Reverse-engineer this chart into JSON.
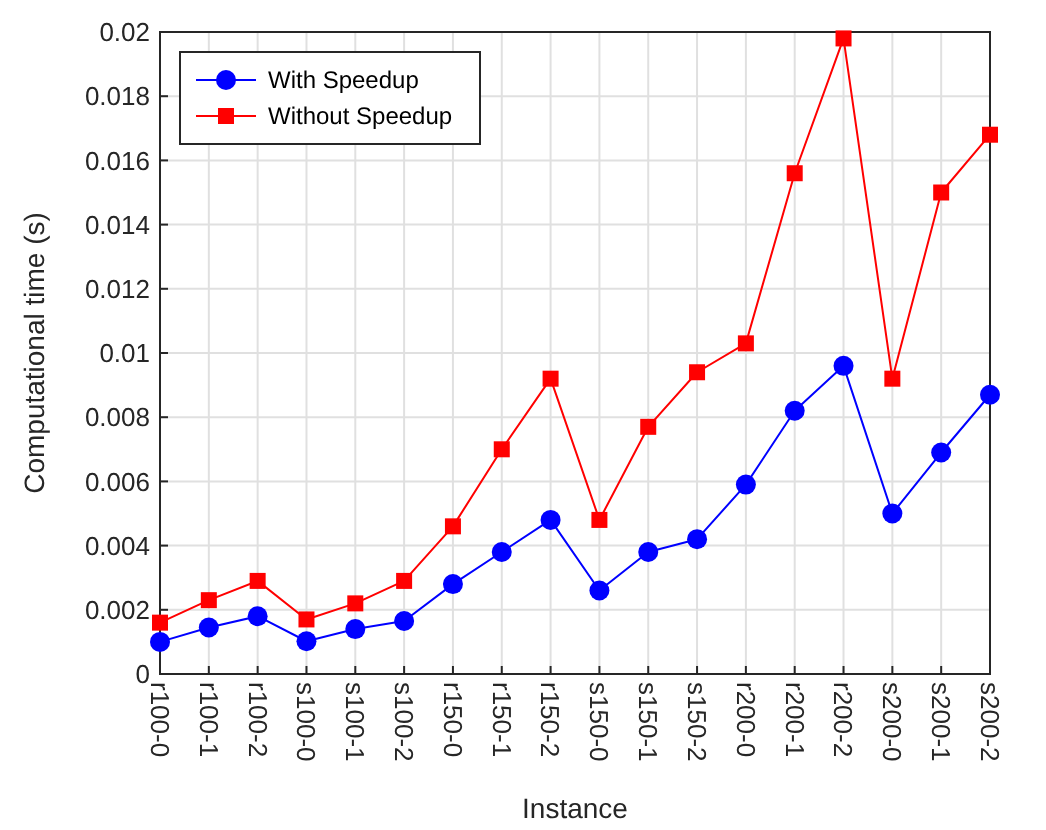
{
  "chart_data": {
    "type": "line",
    "xlabel": "Instance",
    "ylabel": "Computational time (s)",
    "categories": [
      "r100-0",
      "r100-1",
      "r100-2",
      "s100-0",
      "s100-1",
      "s100-2",
      "r150-0",
      "r150-1",
      "r150-2",
      "s150-0",
      "s150-1",
      "s150-2",
      "r200-0",
      "r200-1",
      "r200-2",
      "s200-0",
      "s200-1",
      "s200-2"
    ],
    "series": [
      {
        "name": "With Speedup",
        "color": "#0000ff",
        "marker": "circle",
        "values": [
          0.001,
          0.00145,
          0.0018,
          0.00102,
          0.0014,
          0.00165,
          0.0028,
          0.0038,
          0.0048,
          0.0026,
          0.0038,
          0.0042,
          0.0059,
          0.0082,
          0.0096,
          0.005,
          0.0069,
          0.0087
        ]
      },
      {
        "name": "Without Speedup",
        "color": "#ff0000",
        "marker": "square",
        "values": [
          0.0016,
          0.0023,
          0.0029,
          0.0017,
          0.0022,
          0.0029,
          0.0046,
          0.007,
          0.0092,
          0.0048,
          0.0077,
          0.0094,
          0.0103,
          0.0156,
          0.0198,
          0.0092,
          0.015,
          0.0168
        ]
      }
    ],
    "ylim": [
      0,
      0.02
    ],
    "yticks": [
      0,
      0.002,
      0.004,
      0.006,
      0.008,
      0.01,
      0.012,
      0.014,
      0.016,
      0.018,
      0.02
    ],
    "grid": true,
    "legend": "top left",
    "line_style": "solid"
  }
}
